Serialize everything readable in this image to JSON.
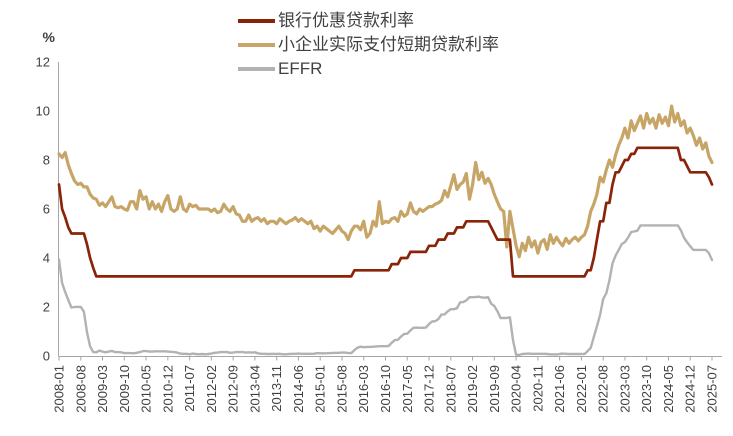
{
  "chart_data": {
    "type": "line",
    "title": "",
    "unit_label": "%",
    "ylim": [
      0,
      12
    ],
    "yticks": [
      0,
      2,
      4,
      6,
      8,
      10,
      12
    ],
    "grid": false,
    "legend_position": "top-center",
    "axis_color": "#a6a6a6",
    "text_color": "#404040",
    "x_range": [
      "2008-01",
      "2025-07"
    ],
    "x_tick_interval_months": 7,
    "x_tick_labels": [
      "2008-01",
      "2008-08",
      "2009-03",
      "2009-10",
      "2010-05",
      "2010-12",
      "2011-07",
      "2012-02",
      "2012-09",
      "2013-04",
      "2013-11",
      "2014-06",
      "2015-01",
      "2015-08",
      "2016-03",
      "2016-10",
      "2017-05",
      "2017-12",
      "2018-07",
      "2019-02",
      "2019-09",
      "2020-04",
      "2020-11",
      "2021-06",
      "2022-01",
      "2022-08",
      "2023-03",
      "2023-10",
      "2024-05",
      "2024-12",
      "2025-07"
    ],
    "series": [
      {
        "key": "prime-rate",
        "name": "银行优惠贷款利率",
        "color": "#8A2409",
        "line_width": 2.7,
        "values": [
          7.0,
          6.0,
          5.66,
          5.25,
          5.0,
          5.0,
          5.0,
          5.0,
          5.0,
          4.56,
          4.0,
          3.6,
          3.25,
          3.25,
          3.25,
          3.25,
          3.25,
          3.25,
          3.25,
          3.25,
          3.25,
          3.25,
          3.25,
          3.25,
          3.25,
          3.25,
          3.25,
          3.25,
          3.25,
          3.25,
          3.25,
          3.25,
          3.25,
          3.25,
          3.25,
          3.25,
          3.25,
          3.25,
          3.25,
          3.25,
          3.25,
          3.25,
          3.25,
          3.25,
          3.25,
          3.25,
          3.25,
          3.25,
          3.25,
          3.25,
          3.25,
          3.25,
          3.25,
          3.25,
          3.25,
          3.25,
          3.25,
          3.25,
          3.25,
          3.25,
          3.25,
          3.25,
          3.25,
          3.25,
          3.25,
          3.25,
          3.25,
          3.25,
          3.25,
          3.25,
          3.25,
          3.25,
          3.25,
          3.25,
          3.25,
          3.25,
          3.25,
          3.25,
          3.25,
          3.25,
          3.25,
          3.25,
          3.25,
          3.25,
          3.25,
          3.25,
          3.25,
          3.25,
          3.25,
          3.25,
          3.25,
          3.25,
          3.25,
          3.25,
          3.25,
          3.5,
          3.5,
          3.5,
          3.5,
          3.5,
          3.5,
          3.5,
          3.5,
          3.5,
          3.5,
          3.5,
          3.5,
          3.75,
          3.75,
          3.75,
          4.0,
          4.0,
          4.0,
          4.25,
          4.25,
          4.25,
          4.25,
          4.25,
          4.25,
          4.5,
          4.5,
          4.5,
          4.75,
          4.75,
          4.75,
          5.0,
          5.0,
          5.0,
          5.25,
          5.25,
          5.25,
          5.5,
          5.5,
          5.5,
          5.5,
          5.5,
          5.5,
          5.5,
          5.5,
          5.25,
          5.0,
          4.75,
          4.75,
          4.75,
          4.75,
          4.75,
          3.25,
          3.25,
          3.25,
          3.25,
          3.25,
          3.25,
          3.25,
          3.25,
          3.25,
          3.25,
          3.25,
          3.25,
          3.25,
          3.25,
          3.25,
          3.25,
          3.25,
          3.25,
          3.25,
          3.25,
          3.25,
          3.25,
          3.25,
          3.25,
          3.5,
          3.5,
          4.0,
          4.75,
          5.5,
          5.5,
          6.25,
          6.25,
          7.0,
          7.5,
          7.5,
          7.75,
          8.0,
          8.0,
          8.25,
          8.25,
          8.5,
          8.5,
          8.5,
          8.5,
          8.5,
          8.5,
          8.5,
          8.5,
          8.5,
          8.5,
          8.5,
          8.5,
          8.5,
          8.5,
          8.0,
          8.0,
          7.75,
          7.5,
          7.5,
          7.5,
          7.5,
          7.5,
          7.5,
          7.3,
          7.0
        ]
      },
      {
        "key": "small-business-rate",
        "name": "小企业实际支付短期贷款利率",
        "color": "#C7A566",
        "line_width": 3.2,
        "values": [
          8.25,
          8.1,
          8.3,
          7.8,
          7.45,
          7.15,
          7.0,
          7.05,
          6.9,
          6.9,
          6.6,
          6.45,
          6.4,
          6.15,
          6.25,
          6.1,
          6.3,
          6.5,
          6.1,
          6.05,
          6.1,
          6.0,
          5.95,
          6.3,
          6.3,
          6.0,
          6.75,
          6.4,
          6.5,
          6.0,
          6.3,
          6.0,
          6.2,
          5.9,
          6.3,
          6.55,
          6.0,
          5.9,
          6.0,
          6.5,
          6.0,
          5.9,
          6.2,
          6.1,
          6.15,
          6.0,
          6.0,
          6.0,
          6.0,
          5.9,
          6.0,
          5.85,
          5.9,
          6.2,
          6.0,
          5.9,
          6.1,
          5.8,
          5.75,
          5.5,
          5.5,
          5.75,
          5.5,
          5.6,
          5.65,
          5.5,
          5.6,
          5.4,
          5.5,
          5.5,
          5.4,
          5.6,
          5.5,
          5.4,
          5.5,
          5.55,
          5.65,
          5.5,
          5.6,
          5.5,
          5.4,
          5.5,
          5.2,
          5.3,
          5.1,
          5.3,
          5.2,
          5.1,
          5.0,
          5.15,
          5.3,
          5.1,
          5.0,
          4.75,
          5.1,
          5.3,
          5.3,
          5.15,
          5.5,
          4.85,
          5.0,
          5.5,
          5.3,
          6.3,
          5.4,
          5.5,
          5.45,
          5.6,
          5.65,
          5.5,
          5.9,
          5.7,
          5.8,
          6.25,
          5.9,
          5.8,
          6.0,
          5.9,
          6.0,
          6.1,
          6.1,
          6.2,
          6.25,
          6.35,
          6.75,
          6.5,
          6.95,
          7.4,
          6.8,
          7.0,
          7.1,
          7.45,
          6.4,
          7.0,
          7.9,
          7.2,
          7.5,
          7.05,
          7.25,
          7.0,
          6.6,
          6.3,
          6.0,
          5.9,
          4.45,
          5.9,
          5.2,
          4.5,
          4.05,
          4.6,
          4.3,
          4.85,
          4.45,
          4.7,
          4.2,
          4.65,
          4.75,
          4.35,
          4.95,
          4.6,
          4.85,
          4.65,
          4.5,
          4.8,
          4.6,
          4.75,
          4.85,
          4.7,
          4.85,
          4.95,
          5.3,
          5.9,
          6.2,
          6.6,
          7.3,
          7.1,
          7.6,
          8.0,
          7.7,
          8.2,
          8.6,
          8.9,
          9.3,
          8.9,
          9.6,
          9.2,
          9.5,
          9.8,
          9.3,
          9.9,
          9.5,
          9.7,
          9.3,
          9.85,
          9.5,
          9.75,
          9.4,
          10.2,
          9.55,
          9.9,
          9.4,
          9.6,
          9.1,
          9.3,
          9.0,
          8.6,
          8.9,
          8.45,
          8.7,
          8.15,
          7.9
        ]
      },
      {
        "key": "effr",
        "name": "EFFR",
        "color": "#B2B2B2",
        "line_width": 2.4,
        "values": [
          3.94,
          2.98,
          2.61,
          2.28,
          1.98,
          2.0,
          2.01,
          2.0,
          1.81,
          0.97,
          0.39,
          0.16,
          0.15,
          0.22,
          0.18,
          0.15,
          0.18,
          0.21,
          0.16,
          0.16,
          0.15,
          0.12,
          0.12,
          0.12,
          0.11,
          0.13,
          0.16,
          0.2,
          0.2,
          0.18,
          0.18,
          0.19,
          0.19,
          0.19,
          0.19,
          0.18,
          0.17,
          0.16,
          0.14,
          0.1,
          0.09,
          0.09,
          0.07,
          0.1,
          0.08,
          0.07,
          0.08,
          0.07,
          0.08,
          0.1,
          0.13,
          0.14,
          0.16,
          0.16,
          0.16,
          0.13,
          0.14,
          0.16,
          0.16,
          0.16,
          0.14,
          0.15,
          0.14,
          0.15,
          0.11,
          0.09,
          0.09,
          0.08,
          0.08,
          0.09,
          0.08,
          0.09,
          0.07,
          0.07,
          0.08,
          0.09,
          0.09,
          0.1,
          0.09,
          0.09,
          0.09,
          0.09,
          0.09,
          0.12,
          0.11,
          0.11,
          0.11,
          0.12,
          0.12,
          0.13,
          0.13,
          0.14,
          0.14,
          0.12,
          0.12,
          0.24,
          0.34,
          0.38,
          0.36,
          0.37,
          0.37,
          0.38,
          0.39,
          0.4,
          0.4,
          0.4,
          0.41,
          0.54,
          0.65,
          0.66,
          0.79,
          0.9,
          0.91,
          1.04,
          1.15,
          1.16,
          1.15,
          1.15,
          1.16,
          1.3,
          1.41,
          1.42,
          1.51,
          1.69,
          1.7,
          1.82,
          1.91,
          1.91,
          1.95,
          2.19,
          2.2,
          2.27,
          2.4,
          2.4,
          2.41,
          2.42,
          2.39,
          2.38,
          2.4,
          2.13,
          2.04,
          1.83,
          1.55,
          1.55,
          1.55,
          1.58,
          0.65,
          0.05,
          0.05,
          0.08,
          0.09,
          0.1,
          0.09,
          0.09,
          0.09,
          0.09,
          0.09,
          0.08,
          0.07,
          0.07,
          0.06,
          0.08,
          0.1,
          0.09,
          0.08,
          0.08,
          0.08,
          0.08,
          0.08,
          0.08,
          0.2,
          0.33,
          0.77,
          1.21,
          1.68,
          2.33,
          2.56,
          3.08,
          3.78,
          4.1,
          4.33,
          4.57,
          4.65,
          4.83,
          5.06,
          5.08,
          5.12,
          5.33,
          5.33,
          5.33,
          5.33,
          5.33,
          5.33,
          5.33,
          5.33,
          5.33,
          5.33,
          5.33,
          5.33,
          5.33,
          5.13,
          4.83,
          4.64,
          4.48,
          4.33,
          4.33,
          4.33,
          4.33,
          4.33,
          4.2,
          3.92
        ]
      }
    ]
  }
}
